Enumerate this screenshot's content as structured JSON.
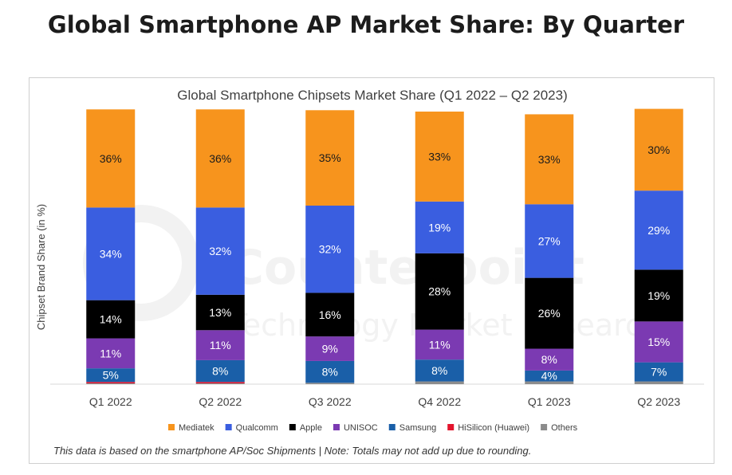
{
  "header": {
    "title": "Global Smartphone AP Market Share: By Quarter"
  },
  "watermark": {
    "brand": "Counterpoint",
    "tagline": "Technology Market Research"
  },
  "footnote": "This data is based on the smartphone AP/Soc Shipments | Note: Totals may not add up due to rounding.",
  "chart_data": {
    "type": "bar",
    "stacked": true,
    "title": "Global Smartphone Chipsets Market Share (Q1 2022 – Q2 2023)",
    "xlabel": "",
    "ylabel": "Chipset Brand Share (in %)",
    "ylim": [
      0,
      100
    ],
    "grid": false,
    "legend_position": "bottom",
    "categories": [
      "Q1 2022",
      "Q2 2022",
      "Q3 2022",
      "Q4 2022",
      "Q1 2023",
      "Q2 2023"
    ],
    "series": [
      {
        "name": "Others",
        "color": "#8c8c8c",
        "values": [
          0.3,
          0.3,
          0.5,
          1,
          1,
          1
        ],
        "labels": [
          "",
          "",
          "",
          "",
          "",
          ""
        ]
      },
      {
        "name": "HiSilicon (Huawei)",
        "color": "#e3142d",
        "values": [
          0.5,
          0.5,
          0,
          0,
          0,
          0
        ],
        "labels": [
          "",
          "",
          "",
          "",
          "",
          ""
        ]
      },
      {
        "name": "Samsung",
        "color": "#1a5fa8",
        "values": [
          5,
          8,
          8,
          8,
          4,
          7
        ],
        "labels": [
          "5%",
          "8%",
          "8%",
          "8%",
          "4%",
          "7%"
        ]
      },
      {
        "name": "UNISOC",
        "color": "#7b3ab2",
        "values": [
          11,
          11,
          9,
          11,
          8,
          15
        ],
        "labels": [
          "11%",
          "11%",
          "9%",
          "11%",
          "8%",
          "15%"
        ]
      },
      {
        "name": "Apple",
        "color": "#000000",
        "values": [
          14,
          13,
          16,
          28,
          26,
          19
        ],
        "labels": [
          "14%",
          "13%",
          "16%",
          "28%",
          "26%",
          "19%"
        ]
      },
      {
        "name": "Qualcomm",
        "color": "#3a5ee0",
        "values": [
          34,
          32,
          32,
          19,
          27,
          29
        ],
        "labels": [
          "34%",
          "32%",
          "32%",
          "19%",
          "27%",
          "29%"
        ]
      },
      {
        "name": "Mediatek",
        "color": "#f7941d",
        "values": [
          36,
          36,
          35,
          33,
          33,
          30
        ],
        "labels": [
          "36%",
          "36%",
          "35%",
          "33%",
          "33%",
          "30%"
        ]
      }
    ],
    "legend": [
      {
        "name": "Mediatek",
        "color": "#f7941d"
      },
      {
        "name": "Qualcomm",
        "color": "#3a5ee0"
      },
      {
        "name": "Apple",
        "color": "#000000"
      },
      {
        "name": "UNISOC",
        "color": "#7b3ab2"
      },
      {
        "name": "Samsung",
        "color": "#1a5fa8"
      },
      {
        "name": "HiSilicon (Huawei)",
        "color": "#e3142d"
      },
      {
        "name": "Others",
        "color": "#8c8c8c"
      }
    ]
  }
}
